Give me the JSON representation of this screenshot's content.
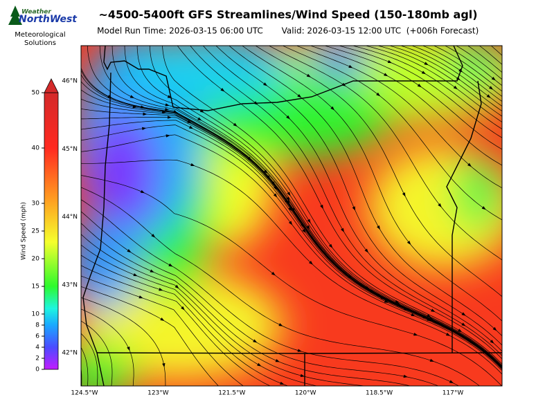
{
  "logo": {
    "brand_top": "Weather",
    "brand_main": "NorthWest",
    "subtitle": [
      "Meteorological",
      "Solutions"
    ]
  },
  "header": {
    "title": "~4500-5400ft GFS Streamlines/Wind Speed (150-180mb agl)",
    "model_run": "Model Run Time: 2026-03-15 06:00 UTC",
    "valid": "Valid: 2026-03-15 12:00 UTC  (+006h Forecast)"
  },
  "colorbar": {
    "label": "Wind Speed (mph)",
    "range": [
      0,
      50
    ],
    "ticks": [
      0,
      2,
      4,
      6,
      8,
      10,
      15,
      20,
      25,
      30,
      40,
      50
    ]
  },
  "map": {
    "lat_labels": [
      "46°N",
      "45°N",
      "44°N",
      "43°N",
      "42°N"
    ],
    "lon_labels": [
      "124.5°W",
      "123°W",
      "121.5°W",
      "120°W",
      "118.5°W",
      "117°W"
    ]
  }
}
